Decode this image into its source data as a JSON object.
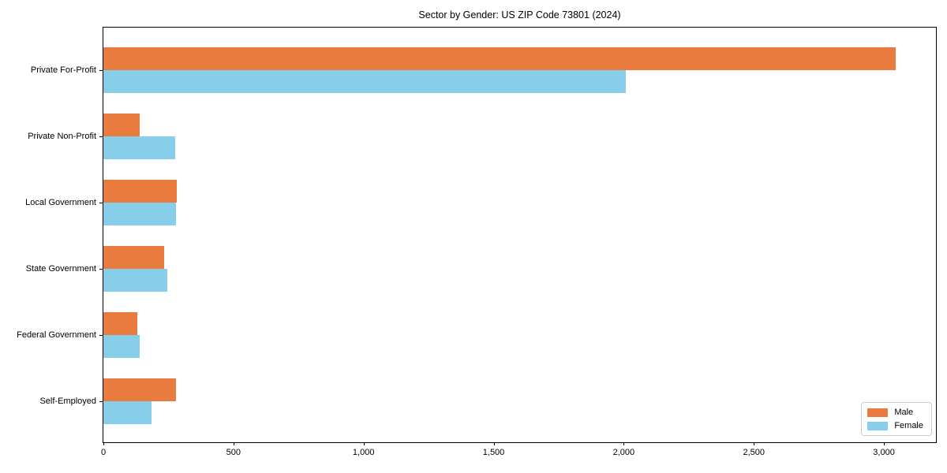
{
  "chart_data": {
    "type": "bar",
    "orientation": "horizontal",
    "title": "Sector by Gender: US ZIP Code 73801 (2024)",
    "xlabel": "",
    "ylabel": "",
    "categories": [
      "Private For-Profit",
      "Private Non-Profit",
      "Local Government",
      "State Government",
      "Federal Government",
      "Self-Employed"
    ],
    "series": [
      {
        "name": "Male",
        "color": "#E87B3D",
        "values": [
          3045,
          139,
          282,
          233,
          130,
          279
        ]
      },
      {
        "name": "Female",
        "color": "#87CEEB",
        "values": [
          2008,
          276,
          279,
          245,
          139,
          185
        ]
      }
    ],
    "xlim": [
      0,
      3200
    ],
    "x_ticks": [
      {
        "value": 0,
        "label": "0"
      },
      {
        "value": 500,
        "label": "500"
      },
      {
        "value": 1000,
        "label": "1,000"
      },
      {
        "value": 1500,
        "label": "1,500"
      },
      {
        "value": 2000,
        "label": "2,000"
      },
      {
        "value": 2500,
        "label": "2,500"
      },
      {
        "value": 3000,
        "label": "3,000"
      }
    ],
    "grid": false,
    "legend_position": "lower right"
  },
  "legend": {
    "items": [
      {
        "label": "Male",
        "color": "#E87B3D"
      },
      {
        "label": "Female",
        "color": "#87CEEB"
      }
    ]
  }
}
